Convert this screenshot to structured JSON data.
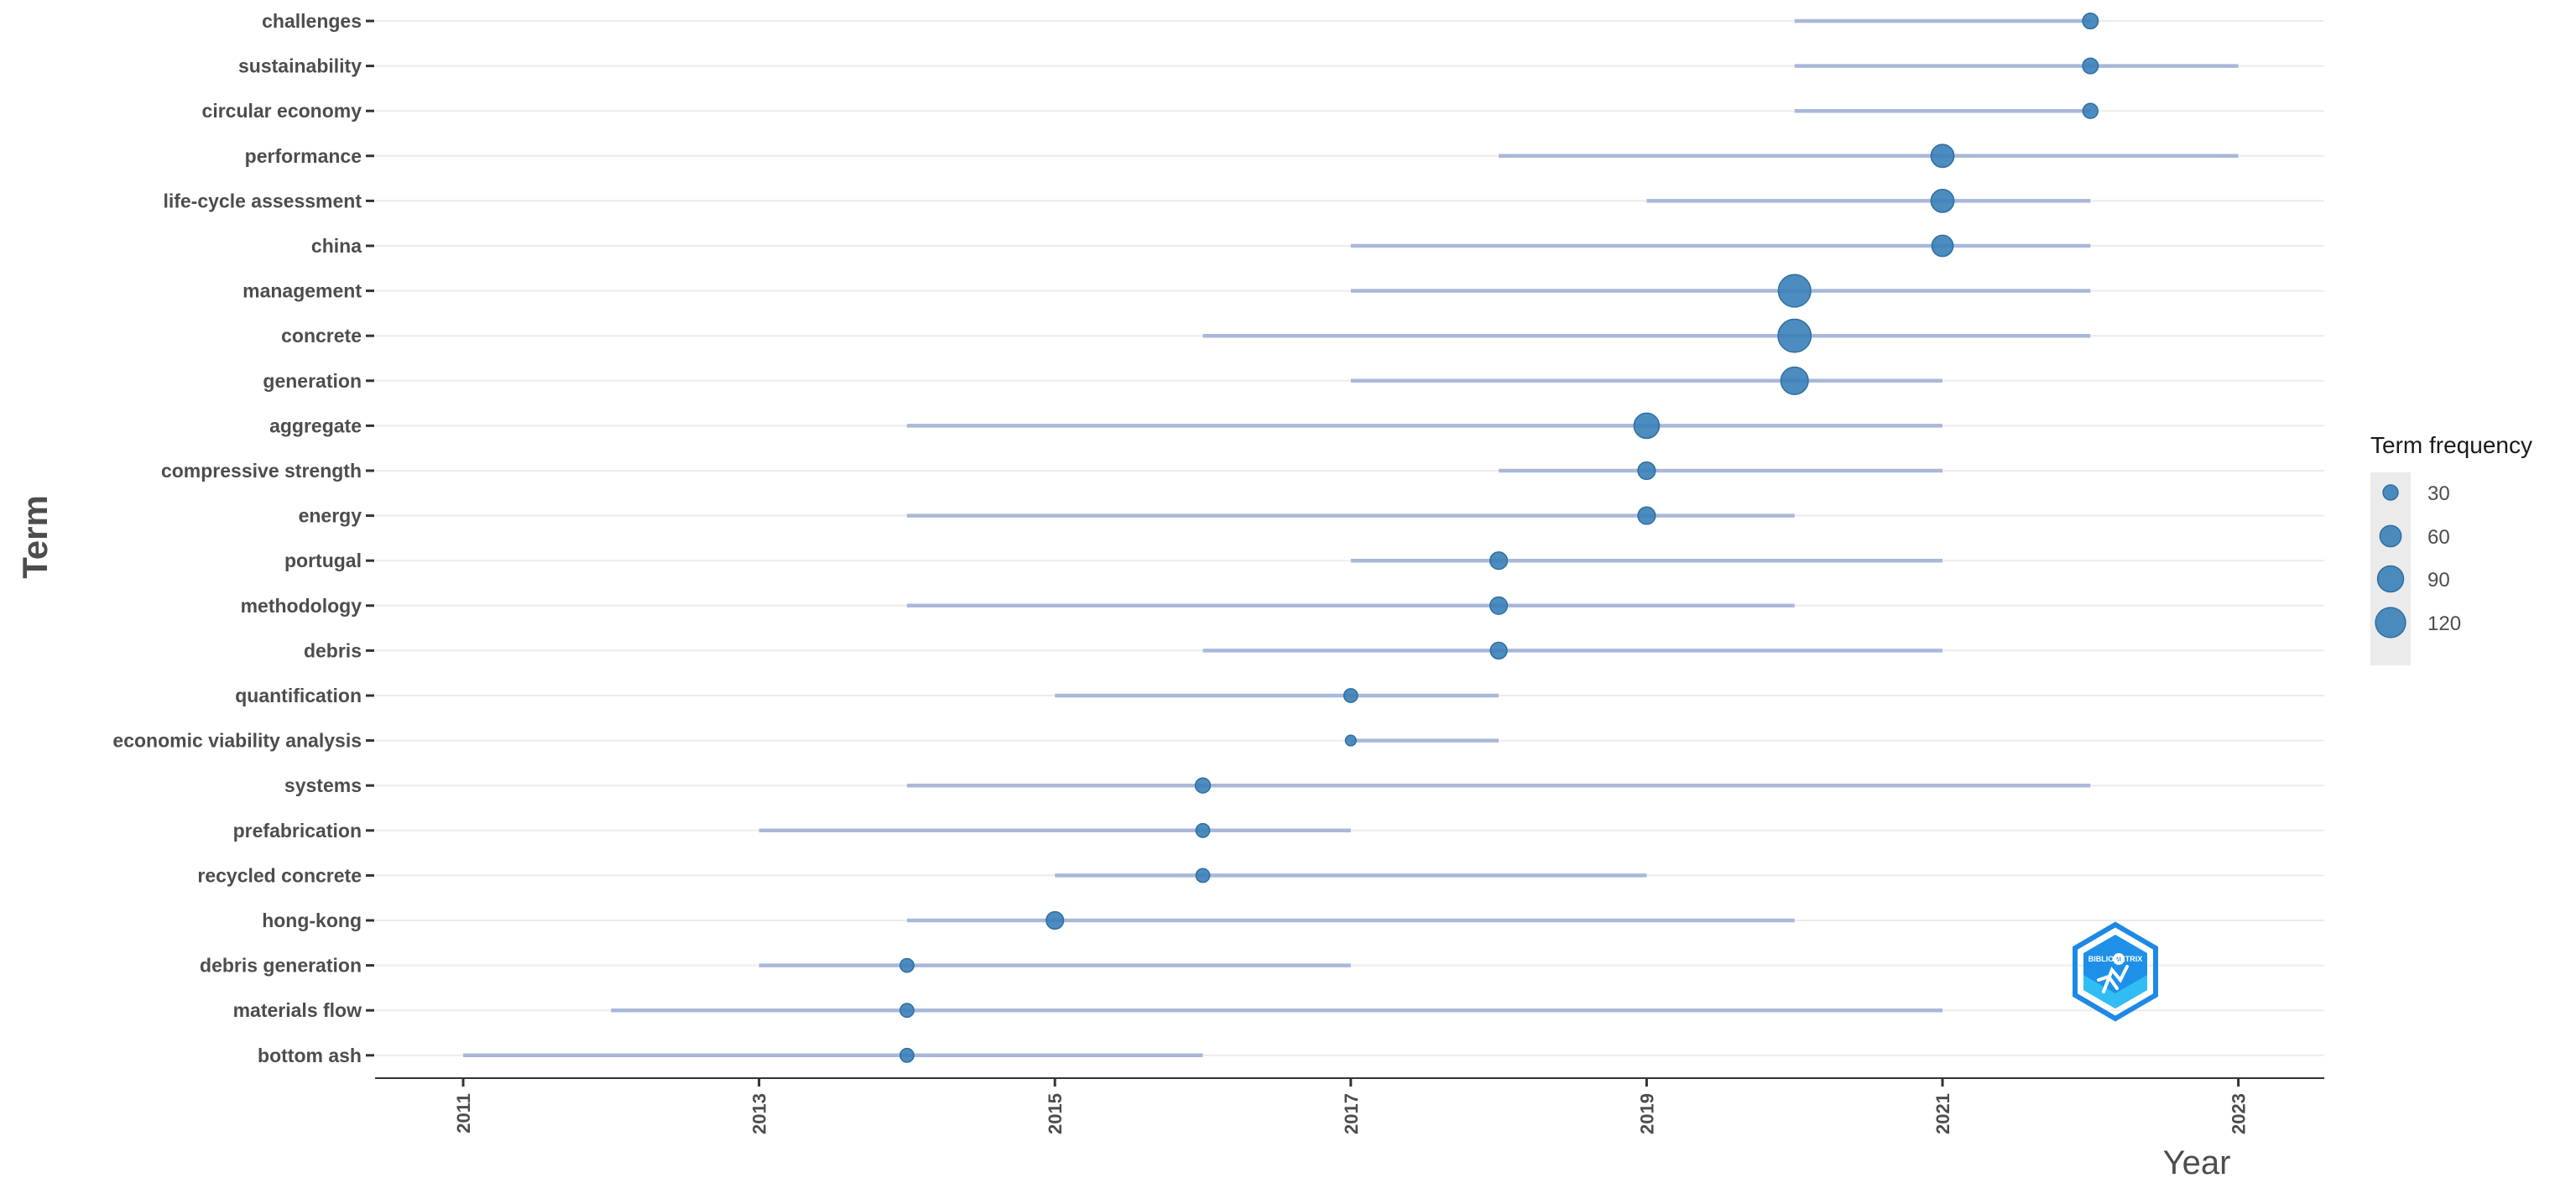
{
  "chart_data": {
    "type": "scatter",
    "subtype": "trend-topics",
    "title": "",
    "xlabel": "Year",
    "ylabel": "Term",
    "xlim": [
      2010.7,
      2023.5
    ],
    "x_ticks": [
      "2011",
      "2013",
      "2015",
      "2017",
      "2019",
      "2021",
      "2023"
    ],
    "legend": {
      "title": "Term frequency",
      "placement": "right",
      "entries": [
        {
          "label": "30",
          "value": 30
        },
        {
          "label": "60",
          "value": 60
        },
        {
          "label": "90",
          "value": 90
        },
        {
          "label": "120",
          "value": 120
        }
      ]
    },
    "point_color": "#3a80b8",
    "range_color": "#a9b8d9",
    "terms": [
      {
        "term": "challenges",
        "start": 2020,
        "median": 2022,
        "end": 2022,
        "freq": 32
      },
      {
        "term": "sustainability",
        "start": 2020,
        "median": 2022,
        "end": 2023,
        "freq": 32
      },
      {
        "term": "circular economy",
        "start": 2020,
        "median": 2022,
        "end": 2022,
        "freq": 30
      },
      {
        "term": "performance",
        "start": 2018,
        "median": 2021,
        "end": 2023,
        "freq": 70
      },
      {
        "term": "life-cycle assessment",
        "start": 2019,
        "median": 2021,
        "end": 2022,
        "freq": 70
      },
      {
        "term": "china",
        "start": 2017,
        "median": 2021,
        "end": 2022,
        "freq": 60
      },
      {
        "term": "management",
        "start": 2017,
        "median": 2020,
        "end": 2022,
        "freq": 140
      },
      {
        "term": "concrete",
        "start": 2016,
        "median": 2020,
        "end": 2022,
        "freq": 145
      },
      {
        "term": "generation",
        "start": 2017,
        "median": 2020,
        "end": 2021,
        "freq": 100
      },
      {
        "term": "aggregate",
        "start": 2014,
        "median": 2019,
        "end": 2021,
        "freq": 85
      },
      {
        "term": "compressive strength",
        "start": 2018,
        "median": 2019,
        "end": 2021,
        "freq": 40
      },
      {
        "term": "energy",
        "start": 2014,
        "median": 2019,
        "end": 2020,
        "freq": 40
      },
      {
        "term": "portugal",
        "start": 2017,
        "median": 2018,
        "end": 2021,
        "freq": 40
      },
      {
        "term": "methodology",
        "start": 2014,
        "median": 2018,
        "end": 2020,
        "freq": 40
      },
      {
        "term": "debris",
        "start": 2016,
        "median": 2018,
        "end": 2021,
        "freq": 37
      },
      {
        "term": "quantification",
        "start": 2015,
        "median": 2017,
        "end": 2018,
        "freq": 25
      },
      {
        "term": "economic viability analysis",
        "start": 2017,
        "median": 2017,
        "end": 2018,
        "freq": 15
      },
      {
        "term": "systems",
        "start": 2014,
        "median": 2016,
        "end": 2022,
        "freq": 30
      },
      {
        "term": "prefabrication",
        "start": 2013,
        "median": 2016,
        "end": 2017,
        "freq": 25
      },
      {
        "term": "recycled concrete",
        "start": 2015,
        "median": 2016,
        "end": 2019,
        "freq": 25
      },
      {
        "term": "hong-kong",
        "start": 2014,
        "median": 2015,
        "end": 2020,
        "freq": 40
      },
      {
        "term": "debris generation",
        "start": 2013,
        "median": 2014,
        "end": 2017,
        "freq": 25
      },
      {
        "term": "materials flow",
        "start": 2012,
        "median": 2014,
        "end": 2021,
        "freq": 25
      },
      {
        "term": "bottom ash",
        "start": 2011,
        "median": 2014,
        "end": 2016,
        "freq": 25
      }
    ]
  },
  "logo": {
    "name": "bibliometrix-logo",
    "text": "BIBLIOMETRIX"
  }
}
